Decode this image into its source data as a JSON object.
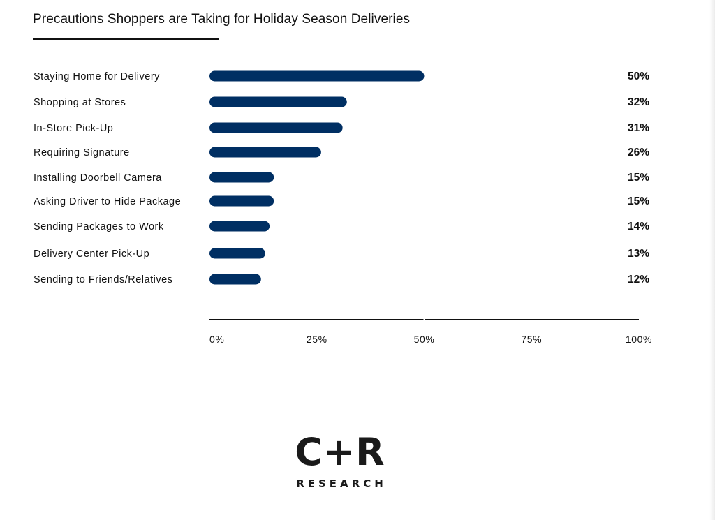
{
  "page": {
    "title": "Precautions Shoppers are Taking for Holiday Season Deliveries"
  },
  "colors": {
    "bar": "#002f63",
    "axis": "#111111",
    "text": "#111111"
  },
  "chart_data": {
    "type": "bar",
    "orientation": "horizontal",
    "title": "Precautions Shoppers are Taking for Holiday Season Deliveries",
    "categories": [
      "Staying Home for Delivery",
      "Shopping at Stores",
      "In-Store Pick-Up",
      "Requiring Signature",
      "Installing Doorbell Camera",
      "Asking Driver to Hide Package",
      "Sending Packages to Work",
      "Delivery Center Pick-Up",
      "Sending to Friends/Relatives"
    ],
    "values": [
      50,
      32,
      31,
      26,
      15,
      15,
      14,
      13,
      12
    ],
    "value_labels": [
      "50%",
      "32%",
      "31%",
      "26%",
      "15%",
      "15%",
      "14%",
      "13%",
      "12%"
    ],
    "xlim": [
      0,
      100
    ],
    "x_ticks": [
      "0%",
      "25%",
      "50%",
      "75%",
      "100%"
    ],
    "xlabel": "",
    "ylabel": "",
    "grid": false,
    "legend": "none"
  },
  "logo": {
    "mark": "C+R",
    "subtitle": "RESEARCH"
  }
}
